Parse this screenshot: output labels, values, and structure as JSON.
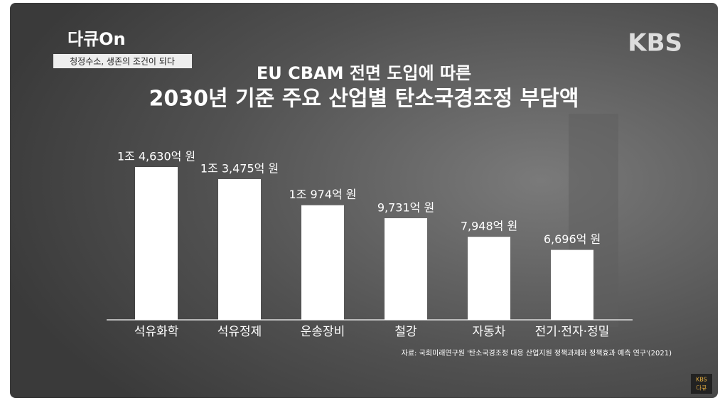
{
  "program": "다큐On",
  "episode": "청정수소, 생존의 조건이 되다",
  "broadcaster": "KBS",
  "corner_logo": [
    "KBS",
    "다큐"
  ],
  "chart_data": {
    "type": "bar",
    "title": [
      "EU CBAM 전면 도입에 따른",
      "2030년 기준 주요 산업별 탄소국경조정 부담액"
    ],
    "categories": [
      "석유화학",
      "석유정제",
      "운송장비",
      "철강",
      "자동차",
      "전기·전자·정밀"
    ],
    "values": [
      14630,
      13475,
      10974,
      9731,
      7948,
      6696
    ],
    "value_labels": [
      "1조 4,630억 원",
      "1조 3,475억 원",
      "1조 974억 원",
      "9,731억 원",
      "7,948억 원",
      "6,696억 원"
    ],
    "color": "#ffffff",
    "source": "자료: 국회미래연구원 '탄소국경조정 대응 산업지원 정책과제와 정책효과 예측 연구'(2021)"
  }
}
